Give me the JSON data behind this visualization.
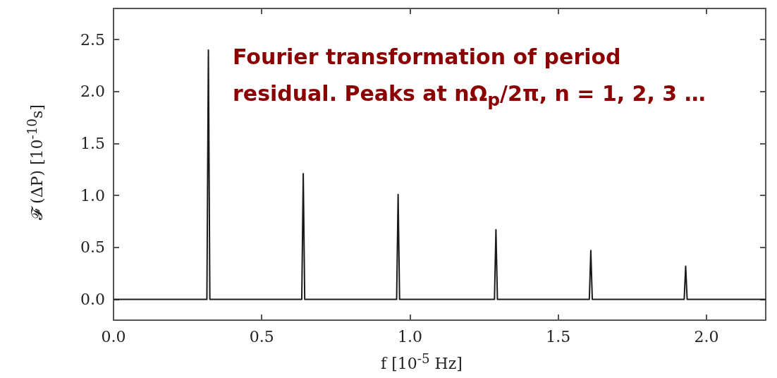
{
  "chart_data": {
    "type": "line",
    "xlabel": "f [10$^{-5}$ Hz]",
    "ylabel": "𝓕 (ΔP) [10$^{-10}$s]",
    "annotations": [
      "Fourier transformation of period residual. Peaks at nΩ$_{p}$/2π,  n = 1, 2, 3 …"
    ],
    "series": [
      {
        "color": "#1a1a1a",
        "x": [
          0,
          0.315,
          0.32,
          0.325,
          0.635,
          0.64,
          0.645,
          0.955,
          0.96,
          0.965,
          1.285,
          1.29,
          1.295,
          1.605,
          1.61,
          1.615,
          1.925,
          1.93,
          1.935,
          2.2
        ],
        "values": [
          0,
          0,
          2.4,
          0,
          0,
          1.21,
          0,
          0,
          1.01,
          0,
          0,
          0.67,
          0,
          0,
          0.47,
          0,
          0,
          0.32,
          0,
          0
        ]
      }
    ],
    "xlim": [
      0,
      2.2
    ],
    "xticks": [
      {
        "value": 0,
        "label": "0.0"
      },
      0.5,
      {
        "value": 1,
        "label": "1.0"
      },
      1.5,
      {
        "value": 2,
        "label": "2.0"
      }
    ],
    "ylim": [
      -0.2,
      2.8
    ],
    "yticks": [
      {
        "value": 0,
        "label": "0.0"
      },
      0.5,
      {
        "value": 1,
        "label": "1.0"
      },
      1.5,
      {
        "value": 2,
        "label": "2.0"
      },
      2.5
    ],
    "grid": false,
    "marker": "none",
    "line_style": "solid"
  }
}
